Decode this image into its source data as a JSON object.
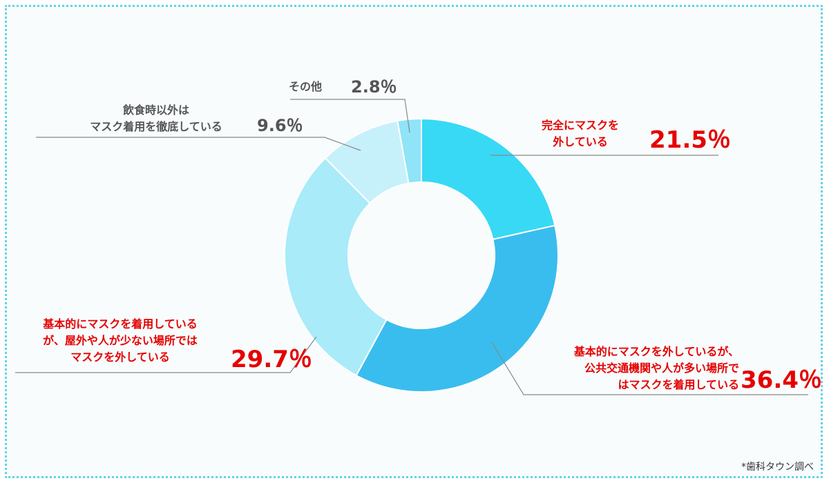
{
  "chart_data": {
    "type": "pie",
    "donut": true,
    "slices": [
      {
        "label": "完全にマスクを外している",
        "value": 21.5,
        "pct_label": "21.5％",
        "color": "#38d9f5"
      },
      {
        "label": "基本的にマスクを外しているが、公共交通機関や人が多い場所ではマスクを着用している",
        "value": 36.4,
        "pct_label": "36.4％",
        "color": "#39bdee"
      },
      {
        "label": "基本的にマスクを着用しているが、屋外や人が少ない場所ではマスクを外している",
        "value": 29.7,
        "pct_label": "29.7％",
        "color": "#a9ebf9"
      },
      {
        "label": "飲食時以外はマスク着用を徹底している",
        "value": 9.6,
        "pct_label": "9.6％",
        "color": "#c6f1fb"
      },
      {
        "label": "その他",
        "value": 2.8,
        "pct_label": "2.8％",
        "color": "#8fe4f8"
      }
    ],
    "label_lines": [
      [
        "完全にマスクを",
        "外している"
      ],
      [
        "基本的にマスクを外しているが、",
        "公共交通機関や人が多い場所で",
        "はマスクを着用している"
      ],
      [
        "基本的にマスクを着用している",
        "が、屋外や人が少ない場所では",
        "マスクを外している"
      ],
      [
        "飲食時以外は",
        "マスク着用を徹底している"
      ],
      [
        "その他"
      ]
    ]
  },
  "source": "*歯科タウン調べ"
}
